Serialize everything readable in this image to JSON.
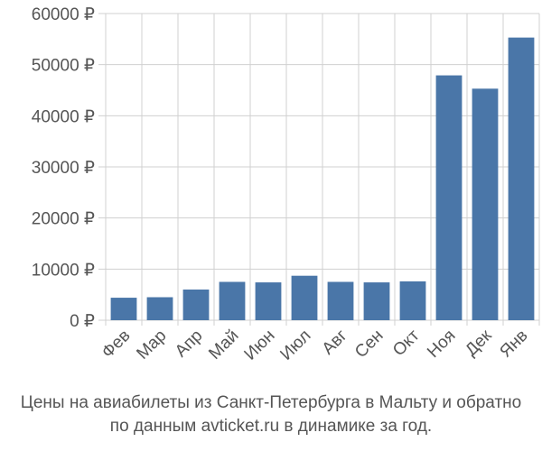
{
  "chart_data": {
    "type": "bar",
    "categories": [
      "Фев",
      "Мар",
      "Апр",
      "Май",
      "Июн",
      "Июл",
      "Авг",
      "Сен",
      "Окт",
      "Ноя",
      "Дек",
      "Янв"
    ],
    "values": [
      4400,
      4500,
      6000,
      7500,
      7400,
      8700,
      7500,
      7400,
      7600,
      47900,
      45300,
      55300
    ],
    "ylim": [
      0,
      60000
    ],
    "yticks": [
      0,
      10000,
      20000,
      30000,
      40000,
      50000,
      60000
    ],
    "ytick_labels": [
      "0 ₽",
      "10000 ₽",
      "20000 ₽",
      "30000 ₽",
      "40000 ₽",
      "50000 ₽",
      "60000 ₽"
    ],
    "grid": true,
    "bar_color": "#4a76a8",
    "grid_color": "#d0d0d0"
  },
  "caption": {
    "line1": "Цены на авиабилеты из Санкт-Петербурга в Мальту и обратно",
    "line2": "по данным avticket.ru в динамике за год."
  }
}
